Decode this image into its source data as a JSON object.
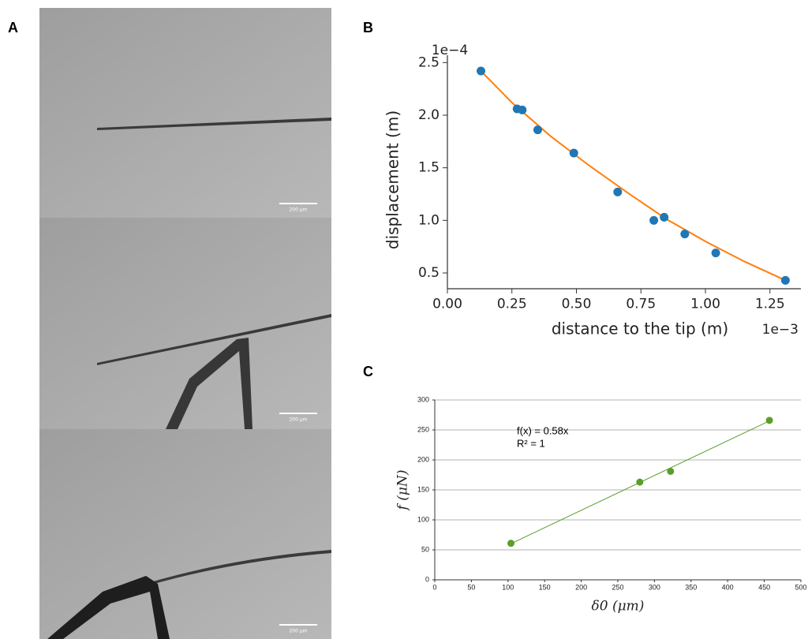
{
  "panels": {
    "a": "A",
    "b": "B",
    "c": "C"
  },
  "images": {
    "scale_bars": [
      "200 µm",
      "200 µm",
      "200 µm"
    ]
  },
  "chart_data": [
    {
      "type": "scatter",
      "xlabel": "distance to the tip (m)",
      "ylabel": "displacement (m)",
      "x_offset_label": "1e−3",
      "y_offset_label": "1e−4",
      "x": [
        0.13,
        0.27,
        0.29,
        0.35,
        0.49,
        0.66,
        0.8,
        0.84,
        0.92,
        1.04,
        1.31
      ],
      "y": [
        2.42,
        2.06,
        2.05,
        1.86,
        1.64,
        1.27,
        1.0,
        1.03,
        0.87,
        0.69,
        0.43
      ],
      "color": "#1f77b4",
      "fit": {
        "x": [
          0.13,
          0.25,
          0.4,
          0.55,
          0.7,
          0.85,
          1.0,
          1.15,
          1.31
        ],
        "y": [
          2.42,
          2.12,
          1.8,
          1.52,
          1.26,
          1.01,
          0.8,
          0.61,
          0.43
        ],
        "color": "#ff7f0e"
      },
      "xlim": [
        0,
        1.37
      ],
      "ylim": [
        0.35,
        2.57
      ],
      "xticks": [
        {
          "value": 0,
          "label": "0.00"
        },
        0.25,
        {
          "value": 0.5,
          "label": "0.50"
        },
        0.75,
        {
          "value": 1,
          "label": "1.00"
        },
        1.25
      ],
      "yticks": [
        0.5,
        {
          "value": 1,
          "label": "1.0"
        },
        1.5,
        {
          "value": 2,
          "label": "2.0"
        },
        2.5
      ],
      "grid": false
    },
    {
      "type": "scatter",
      "xlabel": "δ0 (μm)",
      "ylabel": "f (μN)",
      "annotations": [
        "f(x) = 0.58x",
        "R² = 1"
      ],
      "x": [
        104,
        280,
        322,
        457
      ],
      "y": [
        61,
        163,
        181,
        266
      ],
      "color": "#5a9e2a",
      "fit": {
        "x": [
          104,
          457
        ],
        "y": [
          60.3,
          265.1
        ],
        "color": "#5a9e2a"
      },
      "xlim": [
        0,
        500
      ],
      "ylim": [
        0,
        300
      ],
      "xticks": [
        0,
        50,
        100,
        150,
        200,
        250,
        300,
        350,
        400,
        450,
        500
      ],
      "yticks": [
        0,
        50,
        100,
        150,
        200,
        250,
        300
      ],
      "grid": true
    }
  ]
}
